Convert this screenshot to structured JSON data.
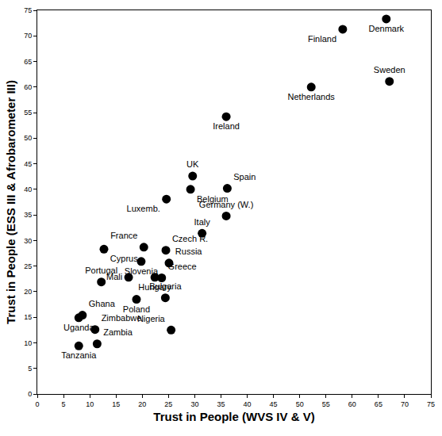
{
  "chart_data": {
    "type": "scatter",
    "x_label": "Trust in People (WVS IV & V)",
    "y_label": "Trust in People (ESS III & Afrobarometer III)",
    "labels": [
      "Denmark",
      "Finland",
      "Sweden",
      "Netherlands",
      "Ireland",
      "UK",
      "Spain",
      "Belgium",
      "Luxemb.",
      "Germany (W.)",
      "Italy",
      "France",
      "Czech R.",
      "Cyprus",
      "Russia",
      "Slovenia",
      "Greece",
      "Hungary",
      "Mali",
      "Portugal",
      "Bulgaria",
      "Poland",
      "Ghana",
      "Uganda",
      "Zimbabwe",
      "Nigeria",
      "Zambia",
      "Tanzania"
    ],
    "x": [
      66.5,
      58.2,
      67.1,
      52.2,
      36.0,
      29.6,
      36.2,
      29.2,
      24.6,
      36.0,
      31.4,
      20.3,
      24.5,
      12.7,
      25.1,
      19.8,
      23.7,
      22.4,
      17.4,
      12.2,
      24.4,
      18.9,
      8.6,
      7.9,
      11.0,
      25.5,
      11.4,
      7.9
    ],
    "values": [
      73.3,
      71.3,
      61.1,
      60.0,
      54.2,
      42.6,
      40.2,
      40.0,
      38.1,
      34.8,
      31.4,
      28.7,
      28.1,
      28.3,
      25.6,
      25.9,
      22.7,
      22.8,
      22.8,
      21.9,
      18.8,
      18.5,
      15.4,
      14.9,
      12.6,
      12.5,
      9.8,
      9.4
    ],
    "color": "#000000",
    "marker": "circle",
    "xlim": [
      0,
      75
    ],
    "ylim": [
      0,
      75
    ],
    "xticks": [
      0,
      5,
      10,
      15,
      20,
      25,
      30,
      35,
      40,
      45,
      50,
      55,
      60,
      65,
      70,
      75
    ],
    "yticks": [
      0,
      5,
      10,
      15,
      20,
      25,
      30,
      35,
      40,
      45,
      50,
      55,
      60,
      65,
      70,
      75
    ],
    "grid": false
  }
}
